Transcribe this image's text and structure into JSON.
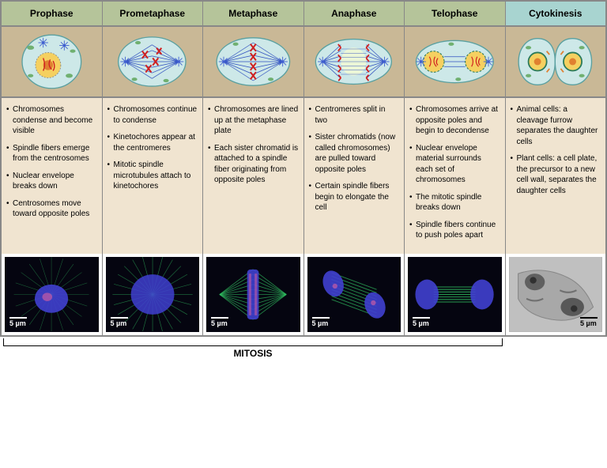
{
  "colors": {
    "mitosis_hdr": "#b5c49a",
    "cyto_hdr": "#a8d4d0",
    "diag_bg": "#c9b896",
    "desc_bg": "#f0e4d0",
    "micro_bg": "#050510",
    "micro_grey": "#b8b8b8",
    "cell_fill": "#cde8e8",
    "cell_stroke": "#5aa0a0",
    "nucleus": "#f5d060",
    "nucleolus": "#e08030",
    "chrom": "#d02020",
    "spindle": "#3050c0",
    "organelle": "#70b070",
    "centrosome": "#4060d0",
    "fluor_blue": "#4040d0",
    "fluor_green": "#30c060",
    "fluor_pink": "#e060a0"
  },
  "phases": [
    {
      "name": "Prophase",
      "type": "mitosis",
      "bullets": [
        "Chromosomes condense and become visible",
        "Spindle fibers emerge from the centrosomes",
        "Nuclear envelope breaks down",
        "Centrosomes move toward opposite poles"
      ]
    },
    {
      "name": "Prometaphase",
      "type": "mitosis",
      "bullets": [
        "Chromosomes continue to condense",
        "Kinetochores appear at the centromeres",
        "Mitotic spindle microtubules attach to kinetochores"
      ]
    },
    {
      "name": "Metaphase",
      "type": "mitosis",
      "bullets": [
        "Chromosomes are lined up at the metaphase plate",
        "Each sister chromatid is attached to a spindle fiber originating from opposite poles"
      ]
    },
    {
      "name": "Anaphase",
      "type": "mitosis",
      "bullets": [
        "Centromeres split in two",
        "Sister chromatids (now called chromosomes) are pulled toward opposite poles",
        "Certain spindle fibers begin to elongate the cell"
      ]
    },
    {
      "name": "Telophase",
      "type": "mitosis",
      "bullets": [
        "Chromosomes arrive at opposite poles and begin to decondense",
        "Nuclear envelope material surrounds each set of chromosomes",
        "The mitotic spindle breaks down",
        "Spindle fibers continue to push poles apart"
      ]
    },
    {
      "name": "Cytokinesis",
      "type": "cyto",
      "bullets": [
        "Animal cells: a cleavage furrow separates the daughter cells",
        "Plant cells: a cell plate, the precursor to a new cell wall, separates the daughter cells"
      ]
    }
  ],
  "scale_label": "5 µm",
  "bracket_label": "MITOSIS"
}
